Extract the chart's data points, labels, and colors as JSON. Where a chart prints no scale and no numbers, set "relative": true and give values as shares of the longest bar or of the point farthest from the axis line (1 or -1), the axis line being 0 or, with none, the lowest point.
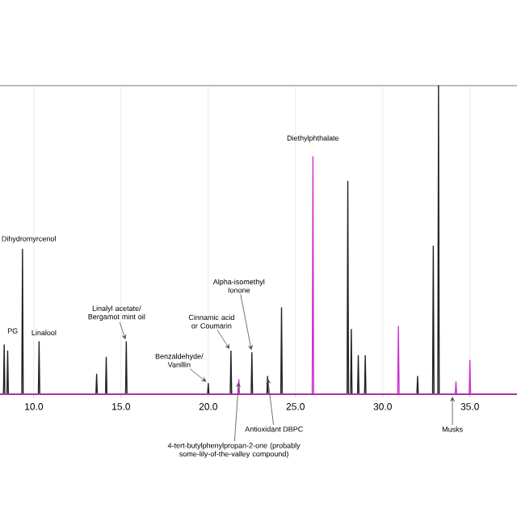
{
  "chart_data": {
    "type": "line",
    "relative": true,
    "grid": "x",
    "xlim": [
      8.06,
      37.7
    ],
    "xticks": [
      {
        "value": 10,
        "label": "10.0"
      },
      {
        "value": 15,
        "label": "15.0"
      },
      {
        "value": 20,
        "label": "20.0"
      },
      {
        "value": 25,
        "label": "25.0"
      },
      {
        "value": 30,
        "label": "30.0"
      },
      {
        "value": 35,
        "label": "35.0"
      }
    ],
    "series": [
      {
        "color": "#222222",
        "x": [
          8.06,
          8.26,
          8.3,
          8.34,
          8.46,
          8.5,
          8.54,
          9.31,
          9.35,
          9.39,
          10.26,
          10.3,
          10.34,
          13.56,
          13.6,
          13.64,
          14.11,
          14.15,
          14.19,
          15.26,
          15.3,
          15.34,
          19.96,
          20.0,
          20.04,
          21.26,
          21.3,
          21.34,
          22.46,
          22.5,
          22.54,
          23.36,
          23.4,
          23.44,
          24.16,
          24.2,
          24.24,
          27.96,
          28.0,
          28.04,
          28.16,
          28.2,
          28.24,
          28.56,
          28.6,
          28.64,
          28.96,
          29.0,
          29.04,
          31.96,
          32.0,
          32.04,
          32.86,
          32.9,
          32.94,
          33.16,
          33.2,
          33.24,
          37.7
        ],
        "values": [
          0,
          0,
          0.16,
          0,
          0,
          0.14,
          0,
          0,
          0.47,
          0,
          0,
          0.17,
          0,
          0,
          0.065,
          0,
          0,
          0.12,
          0,
          0,
          0.17,
          0,
          0,
          0.035,
          0,
          0,
          0.14,
          0,
          0,
          0.135,
          0,
          0,
          0.058,
          0,
          0,
          0.28,
          0,
          0,
          0.69,
          0,
          0,
          0.21,
          0,
          0,
          0.125,
          0,
          0,
          0.125,
          0,
          0,
          0.058,
          0,
          0,
          0.48,
          0,
          0,
          1,
          0,
          0
        ]
      },
      {
        "color": "#cc33cc",
        "x": [
          8.06,
          21.71,
          21.75,
          21.79,
          25.96,
          26.0,
          26.04,
          30.86,
          30.9,
          30.94,
          34.16,
          34.2,
          34.24,
          34.96,
          35.0,
          35.04,
          37.7
        ],
        "values": [
          0,
          0,
          0.047,
          0,
          0,
          0.77,
          0,
          0,
          0.22,
          0,
          0,
          0.04,
          0,
          0,
          0.11,
          0,
          0
        ]
      }
    ],
    "annotations": [
      {
        "text": "PG",
        "x": 8.3,
        "y": 0.16
      },
      {
        "text": "Dihydromyrcenol",
        "x": 9.35,
        "y": 0.47
      },
      {
        "text": "Linalool",
        "x": 10.3,
        "y": 0.17
      },
      {
        "text": "Linalyl acetate/ Bergamot mint oil",
        "x": 15.3,
        "y": 0.17
      },
      {
        "text": "Benzaldehyde/ Vanillin",
        "x": 20.0,
        "y": 0.035
      },
      {
        "text": "Cinnamic acid or Coumarin",
        "x": 21.3,
        "y": 0.14
      },
      {
        "text": "Alpha-isomethyl Ionone",
        "x": 22.5,
        "y": 0.135
      },
      {
        "text": "4-tert-butylphenylpropan-2-one (probably some-lily-of-the-valley compound)",
        "x": 21.75,
        "y": 0.047
      },
      {
        "text": "Antioxidant DBPC",
        "x": 23.4,
        "y": 0.058
      },
      {
        "text": "Diethylphthalate",
        "x": 26.0,
        "y": 0.77
      },
      {
        "text": "Musks",
        "x": 34.0,
        "y": 0
      }
    ]
  }
}
